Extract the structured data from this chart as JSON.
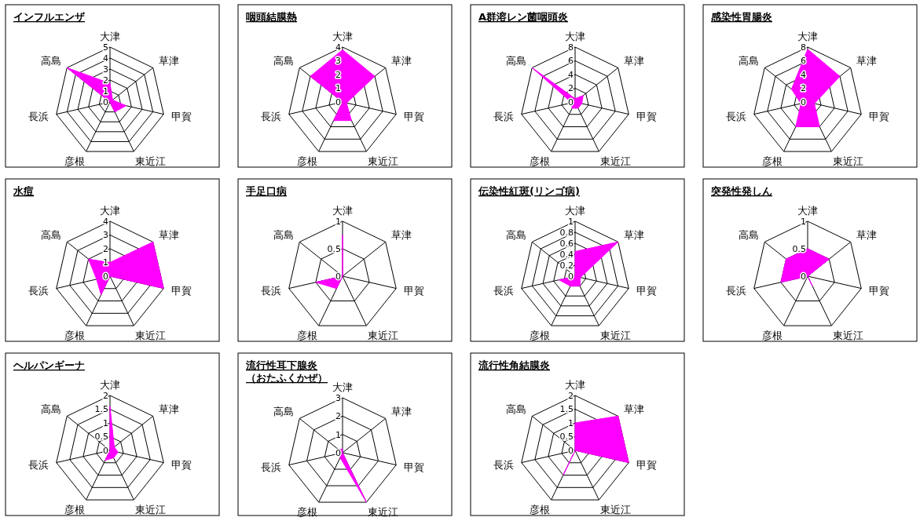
{
  "chart_data": [
    {
      "type": "radar",
      "title": "インフルエンザ",
      "categories": [
        "大津",
        "草津",
        "甲賀",
        "東近江",
        "彦根",
        "長浜",
        "高島"
      ],
      "ylim": [
        0,
        5
      ],
      "yticks": [
        0,
        1,
        2,
        3,
        4,
        5
      ],
      "series": [
        {
          "color": "#ff00ff",
          "values": [
            1.7,
            0.3,
            1.5,
            1,
            0,
            0,
            5
          ]
        }
      ]
    },
    {
      "type": "radar",
      "title": "咽頭結膜熱",
      "categories": [
        "大津",
        "草津",
        "甲賀",
        "東近江",
        "彦根",
        "長浜",
        "高島"
      ],
      "ylim": [
        0,
        4
      ],
      "yticks": [
        0,
        1,
        2,
        3,
        4
      ],
      "series": [
        {
          "color": "#ff00ff",
          "values": [
            3.8,
            3,
            0.3,
            1.5,
            1.5,
            0,
            3
          ]
        }
      ]
    },
    {
      "type": "radar",
      "title": "A群溶レン菌咽頭炎",
      "categories": [
        "大津",
        "草津",
        "甲賀",
        "東近江",
        "彦根",
        "長浜",
        "高島"
      ],
      "ylim": [
        0,
        8
      ],
      "yticks": [
        0,
        2,
        4,
        6,
        8
      ],
      "series": [
        {
          "color": "#ff00ff",
          "values": [
            0.5,
            1.5,
            1,
            1,
            1,
            0.5,
            8
          ]
        }
      ]
    },
    {
      "type": "radar",
      "title": "感染性胃腸炎",
      "categories": [
        "大津",
        "草津",
        "甲賀",
        "東近江",
        "彦根",
        "長浜",
        "高島"
      ],
      "ylim": [
        0,
        8
      ],
      "yticks": [
        0,
        2,
        4,
        6,
        8
      ],
      "series": [
        {
          "color": "#ff00ff",
          "values": [
            7.7,
            6,
            1,
            4,
            4,
            1,
            3
          ]
        }
      ]
    },
    {
      "type": "radar",
      "title": "水痘",
      "categories": [
        "大津",
        "草津",
        "甲賀",
        "東近江",
        "彦根",
        "長浜",
        "高島"
      ],
      "ylim": [
        0,
        4
      ],
      "yticks": [
        0,
        1,
        2,
        3,
        4
      ],
      "series": [
        {
          "color": "#ff00ff",
          "values": [
            1,
            4,
            4,
            0,
            1.5,
            1,
            2
          ]
        }
      ]
    },
    {
      "type": "radar",
      "title": "手足口病",
      "categories": [
        "大津",
        "草津",
        "甲賀",
        "東近江",
        "彦根",
        "長浜",
        "高島"
      ],
      "ylim": [
        0,
        1
      ],
      "yticks": [
        0,
        0.5,
        1
      ],
      "series": [
        {
          "color": "#ff00ff",
          "values": [
            0.75,
            0,
            0,
            0,
            0.25,
            0.5,
            0
          ]
        }
      ]
    },
    {
      "type": "radar",
      "title": "伝染性紅斑(リンゴ病)",
      "categories": [
        "大津",
        "草津",
        "甲賀",
        "東近江",
        "彦根",
        "長浜",
        "高島"
      ],
      "ylim": [
        0,
        1
      ],
      "yticks": [
        0,
        0.2,
        0.4,
        0.6,
        0.8,
        1
      ],
      "series": [
        {
          "color": "#ff00ff",
          "values": [
            0.45,
            1,
            0.1,
            0.2,
            0.2,
            0.3,
            0
          ]
        }
      ]
    },
    {
      "type": "radar",
      "title": "突発性発しん",
      "categories": [
        "大津",
        "草津",
        "甲賀",
        "東近江",
        "彦根",
        "長浜",
        "高島"
      ],
      "ylim": [
        0,
        1
      ],
      "yticks": [
        0,
        0.5,
        1
      ],
      "series": [
        {
          "color": "#ff00ff",
          "values": [
            0.5,
            0.5,
            0,
            0.2,
            0,
            0.5,
            0.5
          ]
        }
      ]
    },
    {
      "type": "radar",
      "title": "ヘルパンギーナ",
      "categories": [
        "大津",
        "草津",
        "甲賀",
        "東近江",
        "彦根",
        "長浜",
        "高島"
      ],
      "ylim": [
        0,
        2
      ],
      "yticks": [
        0,
        0.5,
        1,
        1.5,
        2
      ],
      "series": [
        {
          "color": "#ff00ff",
          "values": [
            1.6,
            0.2,
            0.3,
            0.3,
            0.4,
            0,
            0
          ]
        }
      ]
    },
    {
      "type": "radar",
      "title": "流行性耳下腺炎（おたふくかぜ）",
      "categories": [
        "大津",
        "草津",
        "甲賀",
        "東近江",
        "彦根",
        "長浜",
        "高島"
      ],
      "ylim": [
        0,
        3
      ],
      "yticks": [
        0,
        1,
        2,
        3
      ],
      "series": [
        {
          "color": "#ff00ff",
          "values": [
            0.2,
            0,
            0,
            3,
            0.3,
            0,
            0.3
          ]
        }
      ]
    },
    {
      "type": "radar",
      "title": "流行性角結膜炎",
      "categories": [
        "大津",
        "草津",
        "甲賀",
        "東近江",
        "彦根",
        "長浜",
        "高島"
      ],
      "ylim": [
        0,
        2
      ],
      "yticks": [
        0,
        0.5,
        1,
        1.5,
        2
      ],
      "series": [
        {
          "color": "#ff00ff",
          "values": [
            1,
            2,
            2,
            0,
            1,
            0,
            0
          ]
        }
      ]
    }
  ]
}
